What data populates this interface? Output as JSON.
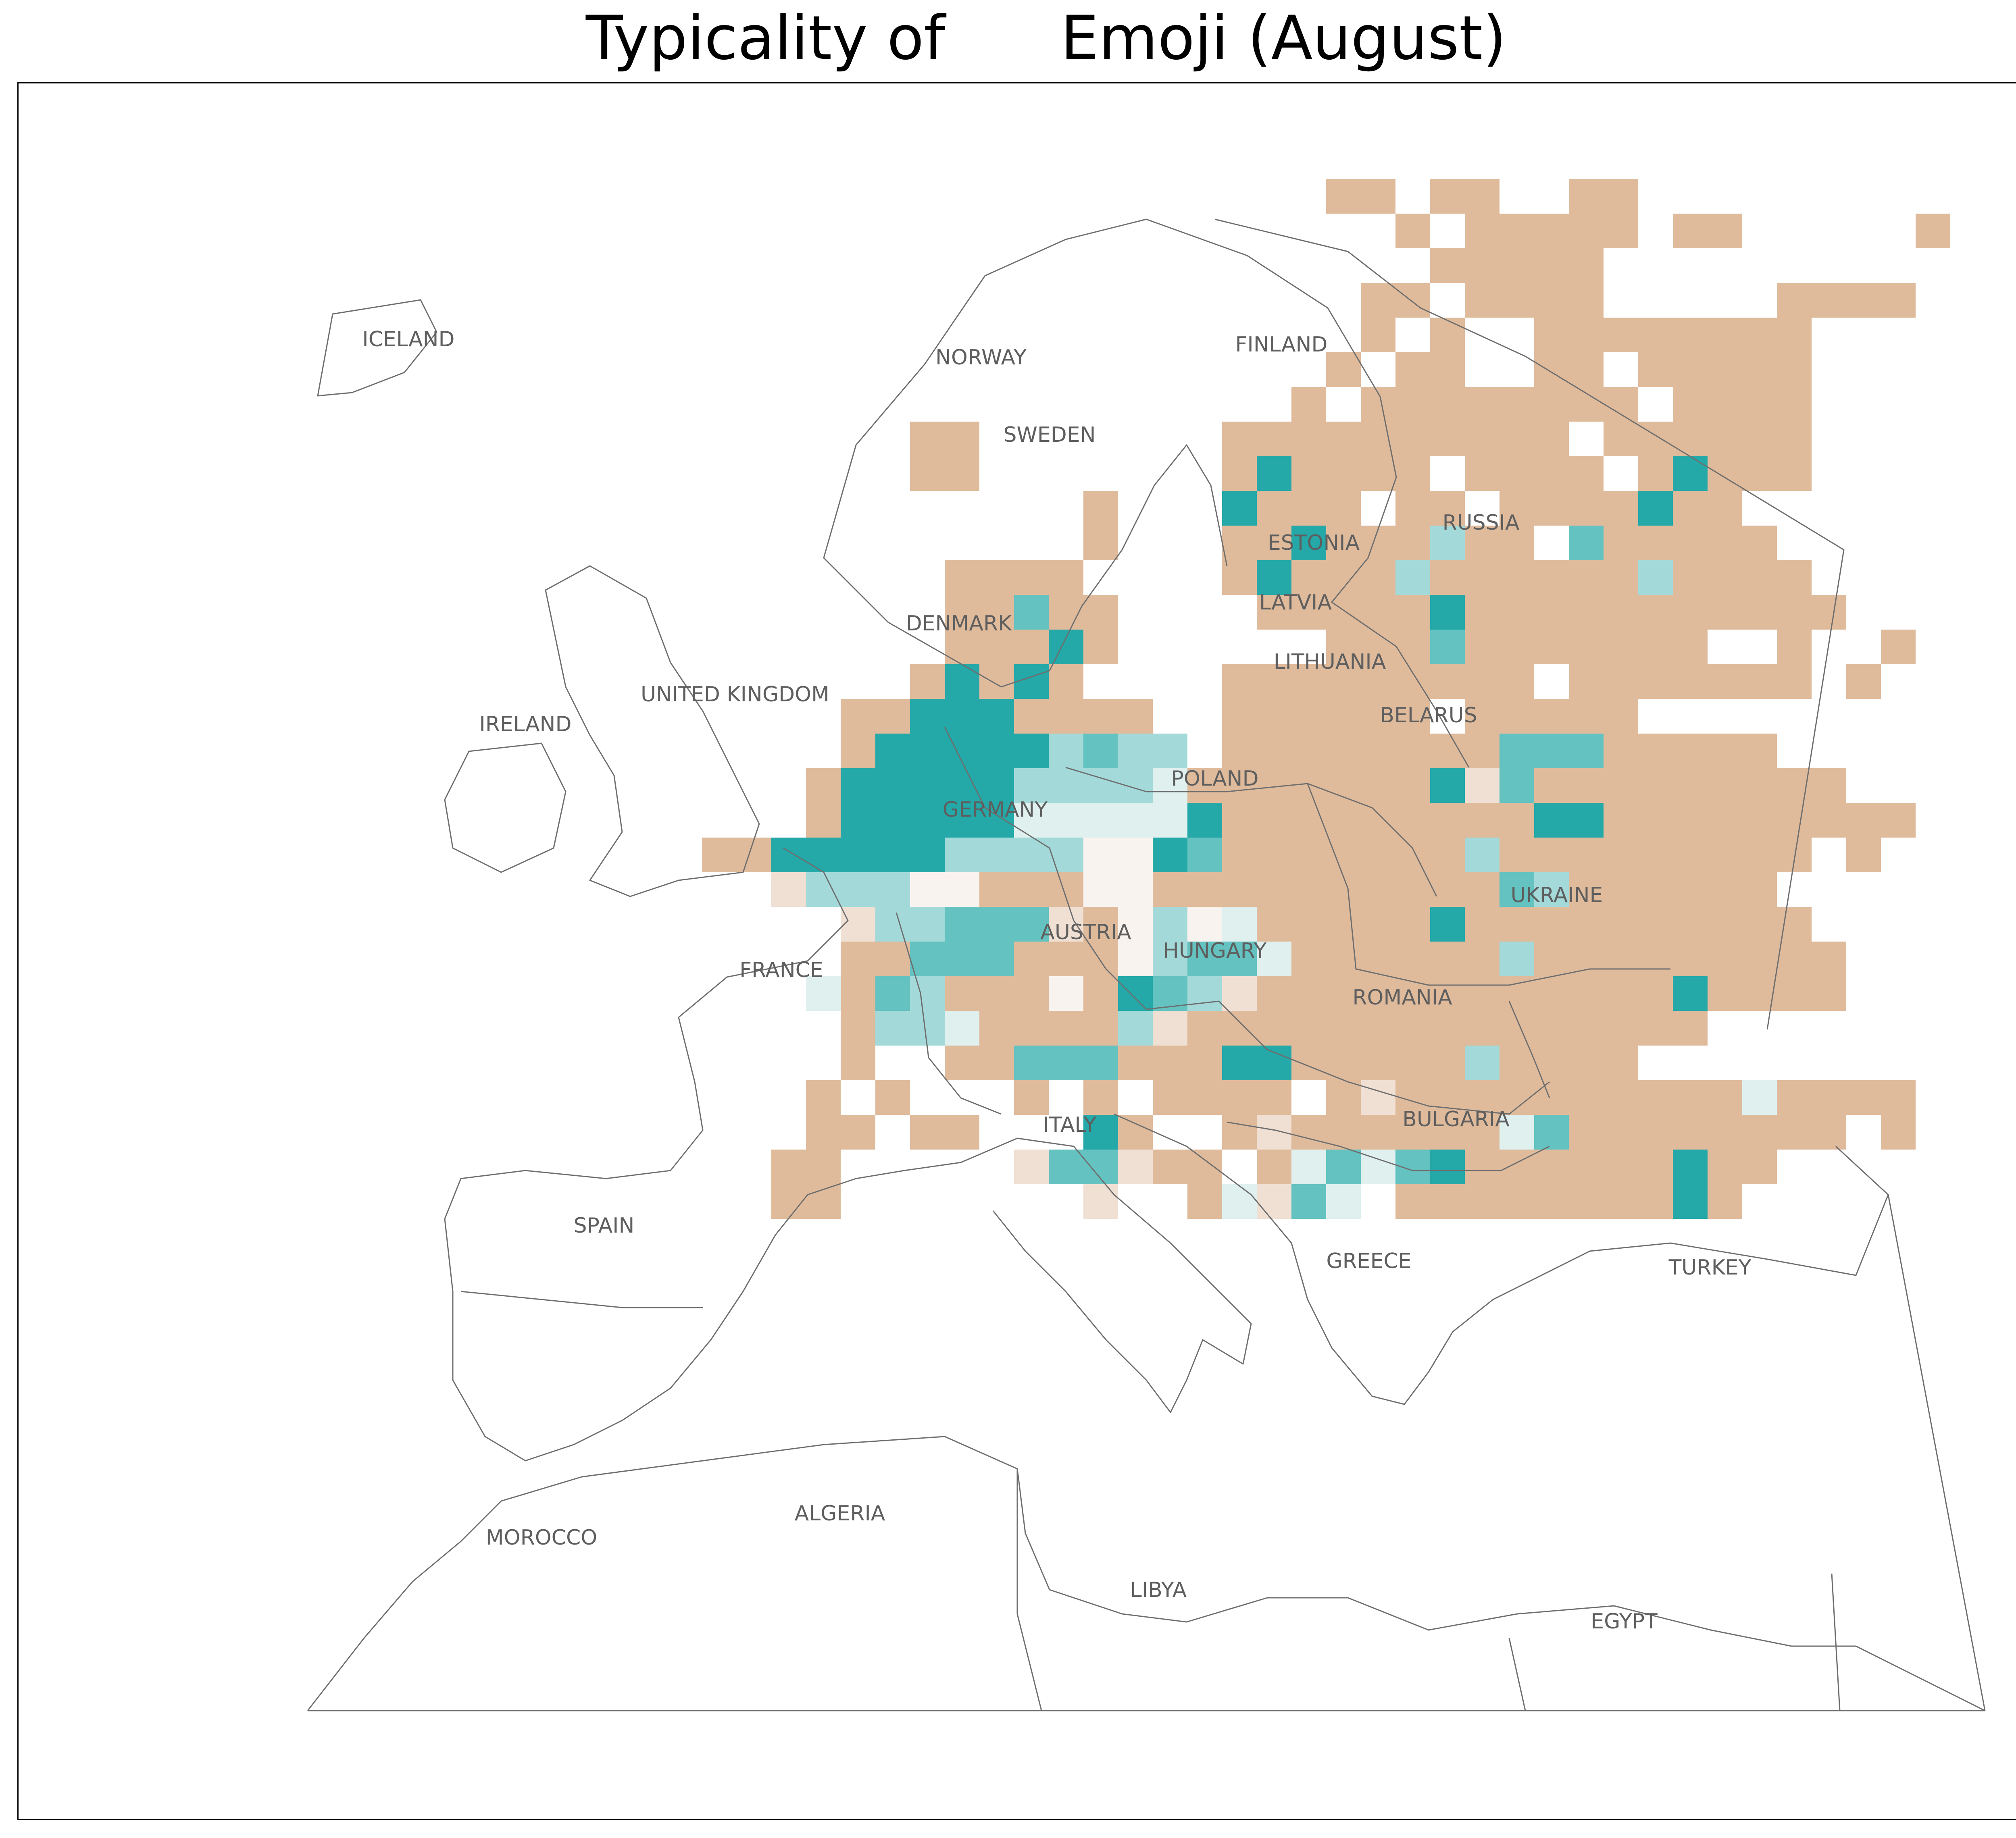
{
  "title": "Typicality of      Emoji (August)",
  "colors": {
    "low_typicality": "#dfbb9c",
    "mid_low": "#f0dfd3",
    "neutral_light": "#f9f3ef",
    "mid_high_light": "#dff0ef",
    "mid_high": "#a3dad9",
    "high": "#64c2c0",
    "very_high": "#24a8a8",
    "border": "#6e6e6e",
    "label": "#5e5e5e"
  },
  "labels": {
    "iceland": "ICELAND",
    "norway": "NORWAY",
    "finland": "FINLAND",
    "sweden": "SWEDEN",
    "russia": "RUSSIA",
    "estonia": "ESTONIA",
    "latvia": "LATVIA",
    "denmark": "DENMARK",
    "lithuania": "LITHUANIA",
    "united_kingdom": "UNITED KINGDOM",
    "belarus": "BELARUS",
    "ireland": "IRELAND",
    "poland": "POLAND",
    "germany": "GERMANY",
    "ukraine": "UKRAINE",
    "austria": "AUSTRIA",
    "hungary": "HUNGARY",
    "france": "FRANCE",
    "romania": "ROMANIA",
    "bulgaria": "BULGARIA",
    "italy": "ITALY",
    "spain": "SPAIN",
    "greece": "GREECE",
    "turkey": "TURKEY",
    "algeria": "ALGERIA",
    "morocco": "MOROCCO",
    "libya": "LIBYA",
    "egypt": "EGYPT"
  },
  "grid": {
    "start_row": 0,
    "start_col": 0,
    "rows": [
      "..........................TT.TT..TT.....",
      "............................T.TTTTT.TT.....T",
      ".............................TTTTT........",
      "...........................TT.TTTT.....TTTT..",
      "...........................T.T..TTTTTTTT...",
      "..........................T.TT..TT.TTTTT....",
      ".........................T.TTTTTTTT.TTTT..",
      "..............TT.......TTTTTTTTTT.TTTTTT",
      "..............TT.......TBTTTT.TTTT.TBTTT",
      "...................T...BTTT.TT.TTTTBTT..",
      "...................T...TTCTTTGTT.HTTTTT..",
      "...............TTTT....TCTTTGTTTTTTGTTTT",
      "...............TTHTT....TTTTTBTTTTTTTTTTT",
      "...............TTTCT......TTTDTTTTTTT..T..T",
      "..............TCTCT....TTTTTTTTT.TTTTTTT.T",
      "............TTCCCTTTT..TTTTTT.TTTTT",
      "............TCCCCCGHGG.TTTTTTTTDHHTTTTT",
      "...........TCCCCCGGGGQTTTTTTTCSDTTTTTTTTT",
      "...........TCCCCCQQQQQCTTTTTTTTTBBTTTTTTTTT",
      "........TTCCCCCGGGGPPCDTTTTTTTGTTTTTTTTT.T",
      "..........SGGGPPTTTPPTTTTTTTTTTDGTTTTTT",
      "............SGGHHHSTPGPQTTTTTBTTTTTTTTTT",
      "............TTHHHTTTPGHHQTTTTTTGTTTTTTTTT",
      "...........QTHGTTTPTCDGSTTTTTTTTTTTTCTTTT",
      "............TGGQTTTTGSTTTTTTTTTTTTTTT",
      "............T..TTHHHTTTCCTTTTTGTTTT",
      "...........T.T...T.T.TTTT.TSTTTTTTTTTTQTTTT",
      "...........TT.TT...CT..TSTTTTTTQHTTTTTTTT.T",
      "..........TT.....SHHSTT.TQHQHCTTTTTTCTT",
      "..........TT.......S..TQSHQ.TTTTTTTTCT"
    ]
  },
  "chart_data": {
    "type": "heatmap",
    "title": "Typicality of      Emoji (August)",
    "encoding": "diverging color scale: tan = less typical, teal = more typical"
  }
}
